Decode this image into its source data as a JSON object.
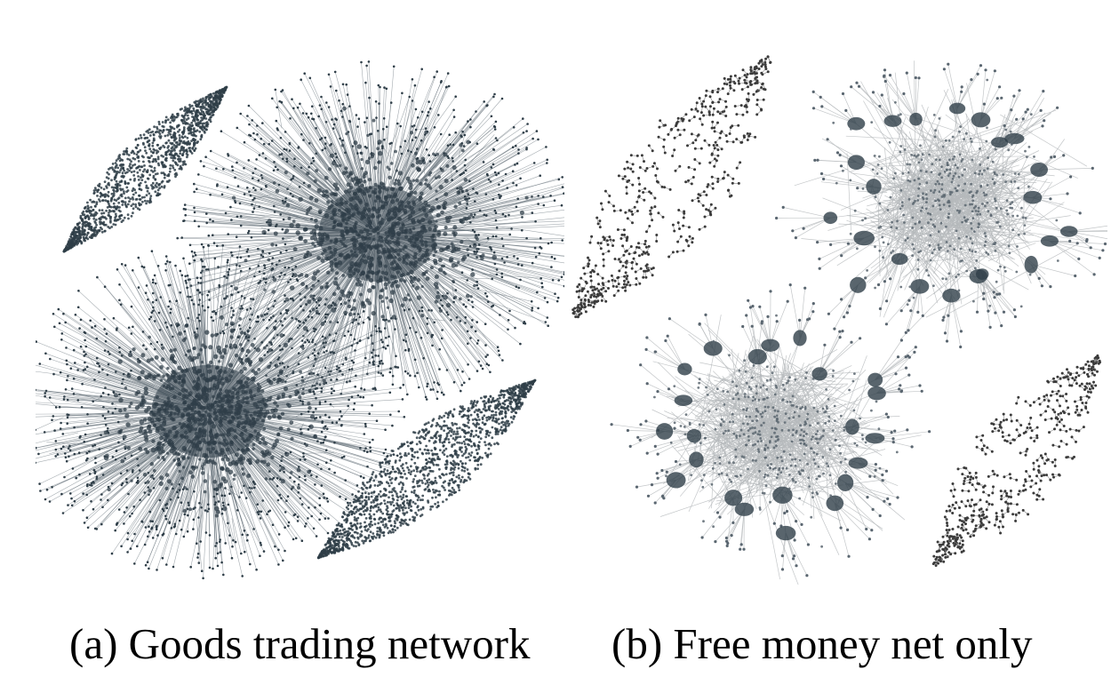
{
  "figure": {
    "panels": [
      {
        "id": "a",
        "caption": "(a) Goods trading network",
        "style": "dense"
      },
      {
        "id": "b",
        "caption": "(b) Free money net only",
        "style": "sparse"
      }
    ],
    "colors": {
      "node_dark": "#2f3e48",
      "node_mid": "#5a6670",
      "edge_light": "#b5b9bc",
      "background": "#ffffff"
    }
  }
}
